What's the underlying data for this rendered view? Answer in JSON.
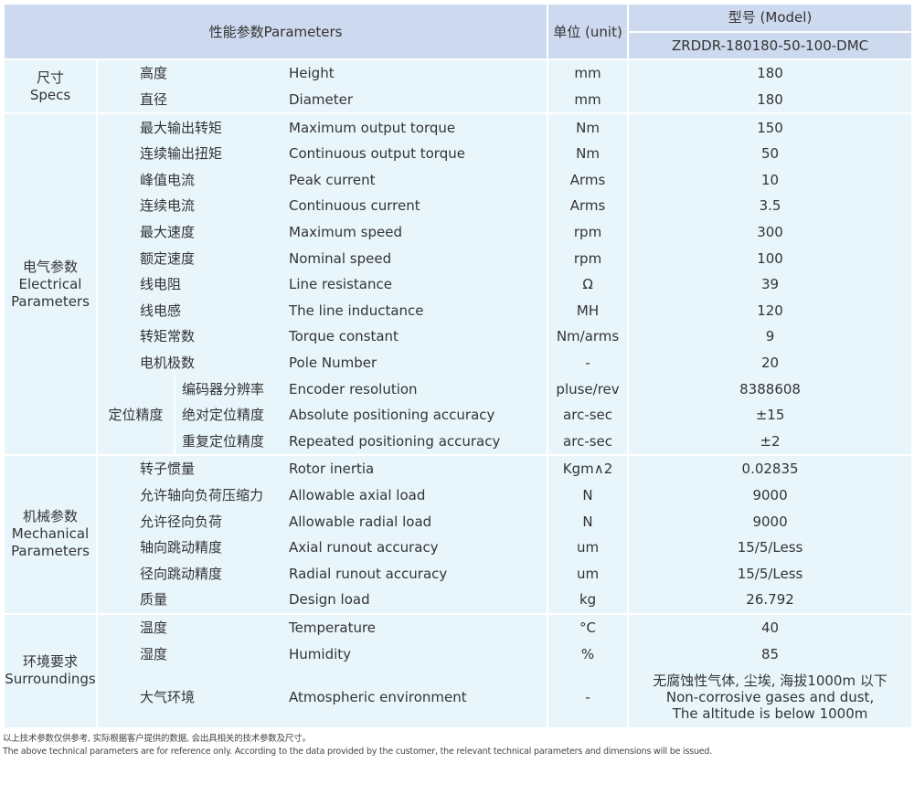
{
  "header": {
    "parameters": "性能参数Parameters",
    "unit": "单位 (unit)",
    "model_label": "型号 (Model)",
    "model": "ZRDDR-180180-50-100-DMC"
  },
  "groups": [
    {
      "name": "尺寸\nSpecs",
      "rows": [
        {
          "cn": "高度",
          "en": "Height",
          "unit": "mm",
          "value": "180"
        },
        {
          "cn": "直径",
          "en": "Diameter",
          "unit": "mm",
          "value": "180"
        }
      ]
    },
    {
      "name": "电气参数\nElectrical\nParameters",
      "rows": [
        {
          "cn": "最大输出转矩",
          "en": "Maximum output torque",
          "unit": "Nm",
          "value": "150"
        },
        {
          "cn": "连续输出扭矩",
          "en": "Continuous output torque",
          "unit": "Nm",
          "value": "50"
        },
        {
          "cn": "峰值电流",
          "en": "Peak current",
          "unit": "Arms",
          "value": "10"
        },
        {
          "cn": "连续电流",
          "en": "Continuous current",
          "unit": "Arms",
          "value": "3.5"
        },
        {
          "cn": "最大速度",
          "en": "Maximum speed",
          "unit": "rpm",
          "value": "300"
        },
        {
          "cn": "额定速度",
          "en": "Nominal speed",
          "unit": "rpm",
          "value": "100"
        },
        {
          "cn": "线电阻",
          "en": "Line resistance",
          "unit": "Ω",
          "value": "39"
        },
        {
          "cn": "线电感",
          "en": "The line inductance",
          "unit": "MH",
          "value": "120"
        },
        {
          "cn": "转矩常数",
          "en": "Torque constant",
          "unit": "Nm/arms",
          "value": "9"
        },
        {
          "cn": "电机极数",
          "en": "Pole Number",
          "unit": "-",
          "value": "20"
        },
        {
          "sub": "定位精度",
          "cn": "编码器分辨率",
          "en": "Encoder resolution",
          "unit": "pluse/rev",
          "value": "8388608"
        },
        {
          "sub": "定位精度",
          "cn": "绝对定位精度",
          "en": "Absolute positioning accuracy",
          "unit": "arc-sec",
          "value": "±15"
        },
        {
          "sub": "定位精度",
          "cn": "重复定位精度",
          "en": "Repeated positioning accuracy",
          "unit": "arc-sec",
          "value": "±2"
        }
      ]
    },
    {
      "name": "机械参数\nMechanical\nParameters",
      "rows": [
        {
          "cn": "转子惯量",
          "en": "Rotor inertia",
          "unit": "Kgm∧2",
          "value": "0.02835"
        },
        {
          "cn": "允许轴向负荷压缩力",
          "en": "Allowable axial load",
          "unit": "N",
          "value": "9000"
        },
        {
          "cn": "允许径向负荷",
          "en": "Allowable radial load",
          "unit": "N",
          "value": "9000"
        },
        {
          "cn": "轴向跳动精度",
          "en": "Axial runout accuracy",
          "unit": "um",
          "value": "15/5/Less"
        },
        {
          "cn": "径向跳动精度",
          "en": "Radial runout accuracy",
          "unit": "um",
          "value": "15/5/Less"
        },
        {
          "cn": "质量",
          "en": "Design load",
          "unit": "kg",
          "value": "26.792"
        }
      ]
    },
    {
      "name": "环境要求\nSurroundings",
      "rows": [
        {
          "cn": "温度",
          "en": "Temperature",
          "unit": "°C",
          "value": "40"
        },
        {
          "cn": "湿度",
          "en": "Humidity",
          "unit": "%",
          "value": "85"
        },
        {
          "cn": "大气环境",
          "en": "Atmospheric environment",
          "unit": "-",
          "value": "无腐蚀性气体, 尘埃, 海拔1000m 以下\nNon-corrosive gases and dust,\nThe altitude is below 1000m",
          "tall": true
        }
      ]
    }
  ],
  "footnote": {
    "cn": "以上技术参数仅供参考, 实际根据客户提供的数据, 会出具相关的技术参数及尺寸。",
    "en": "The above technical parameters are for reference only. According to the data provided by the customer, the relevant technical parameters and dimensions will be issued."
  }
}
